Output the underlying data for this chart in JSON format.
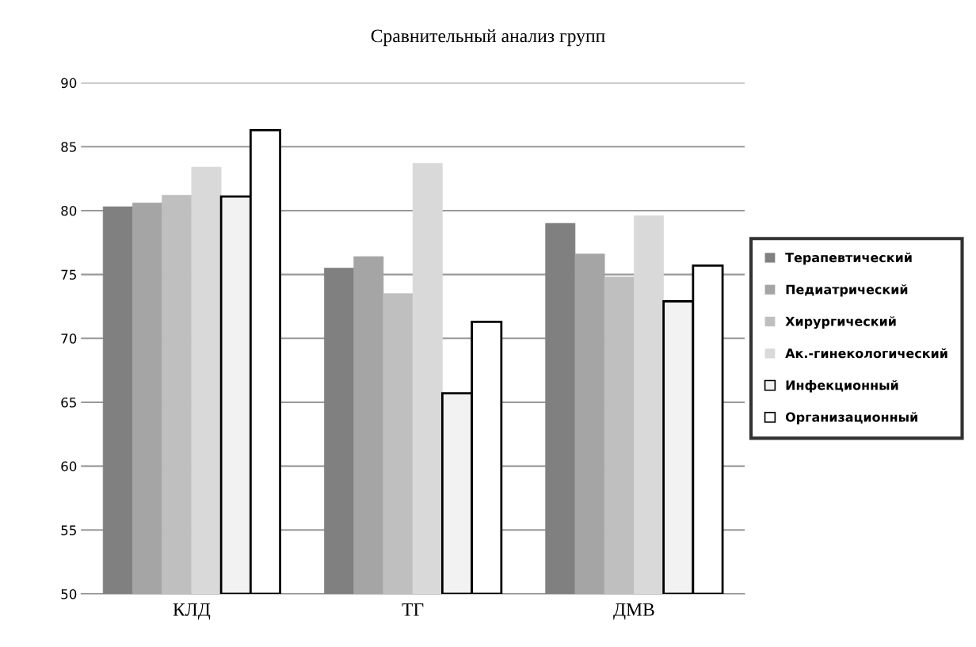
{
  "chart_data": {
    "type": "bar",
    "title": "Сравнительный анализ групп",
    "categories": [
      "КЛД",
      "ТГ",
      "ДМВ"
    ],
    "series": [
      {
        "name": "Терапевтический",
        "color": "#808080",
        "values": [
          80.3,
          75.5,
          79.0
        ]
      },
      {
        "name": "Педиатрический",
        "color": "#a5a5a5",
        "values": [
          80.6,
          76.4,
          76.6
        ]
      },
      {
        "name": "Хирургический",
        "color": "#bfbfbf",
        "values": [
          81.2,
          73.5,
          74.8
        ]
      },
      {
        "name": "Ак.-гинекологический",
        "color": "#d9d9d9",
        "values": [
          83.4,
          83.7,
          79.6
        ]
      },
      {
        "name": "Инфекционный",
        "color": "#f2f2f2",
        "values": [
          81.1,
          65.7,
          72.9
        ]
      },
      {
        "name": "Организационный",
        "color": "#ffffff",
        "values": [
          86.3,
          71.3,
          75.7
        ]
      }
    ],
    "ylim": [
      50,
      90
    ],
    "yticks": [
      50,
      55,
      60,
      65,
      70,
      75,
      80,
      85,
      90
    ],
    "grid": "y",
    "legend": "right"
  }
}
